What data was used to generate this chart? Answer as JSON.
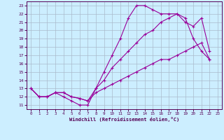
{
  "xlabel": "Windchill (Refroidissement éolien,°C)",
  "background_color": "#cceeff",
  "grid_color": "#aabbcc",
  "line_color": "#990099",
  "xlim": [
    -0.5,
    23.5
  ],
  "ylim": [
    10.5,
    23.5
  ],
  "xticks": [
    0,
    1,
    2,
    3,
    4,
    5,
    6,
    7,
    8,
    9,
    10,
    11,
    12,
    13,
    14,
    15,
    16,
    17,
    18,
    19,
    20,
    21,
    22,
    23
  ],
  "yticks": [
    11,
    12,
    13,
    14,
    15,
    16,
    17,
    18,
    19,
    20,
    21,
    22,
    23
  ],
  "curve1_x": [
    0,
    1,
    2,
    3,
    4,
    5,
    6,
    7,
    8,
    9,
    10,
    11,
    12,
    13,
    14,
    15,
    16,
    17,
    18,
    19,
    20,
    21,
    22
  ],
  "curve1_y": [
    13,
    12,
    12,
    12.5,
    12,
    11.5,
    11,
    11,
    13,
    15,
    17,
    19,
    21.5,
    23,
    23,
    22.5,
    22,
    22,
    22,
    21.5,
    19,
    17.5,
    16.5
  ],
  "curve2_x": [
    0,
    1,
    2,
    3,
    4,
    5,
    6,
    7,
    8,
    9,
    10,
    11,
    12,
    13,
    14,
    15,
    16,
    17,
    18,
    19,
    20,
    21,
    22
  ],
  "curve2_y": [
    13,
    12,
    12,
    12.5,
    12.5,
    12,
    11.8,
    11.5,
    13,
    14,
    15.5,
    16.5,
    17.5,
    18.5,
    19.5,
    20,
    21,
    21.5,
    22,
    21,
    20.5,
    21.5,
    17.5
  ],
  "curve3_x": [
    0,
    1,
    2,
    3,
    4,
    5,
    6,
    7,
    8,
    9,
    10,
    11,
    12,
    13,
    14,
    15,
    16,
    17,
    18,
    19,
    20,
    21,
    22
  ],
  "curve3_y": [
    13,
    12,
    12,
    12.5,
    12.5,
    12,
    11.8,
    11.5,
    12.5,
    13,
    13.5,
    14,
    14.5,
    15,
    15.5,
    16,
    16.5,
    16.5,
    17,
    17.5,
    18,
    18.5,
    16.5
  ]
}
